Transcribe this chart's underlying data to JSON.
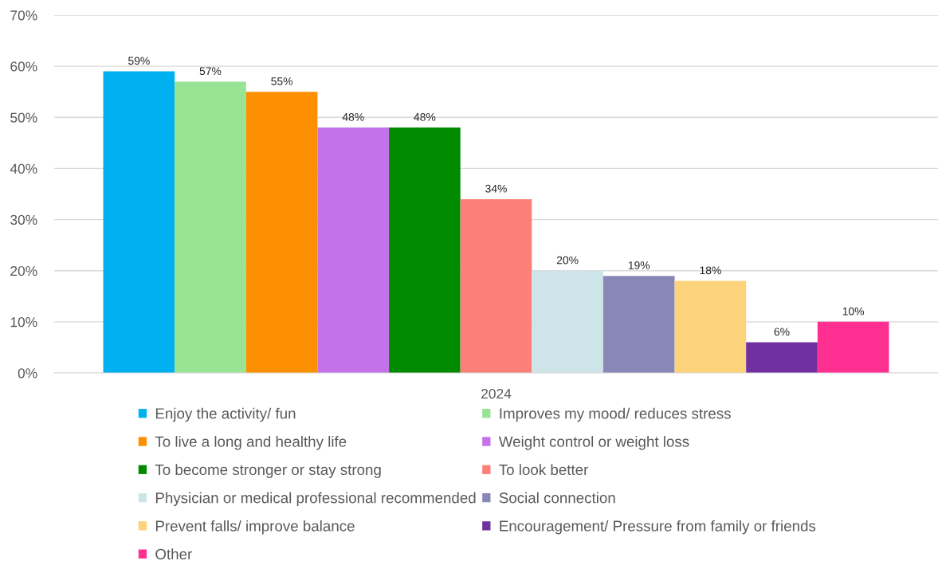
{
  "chart_data": {
    "type": "bar",
    "categories": [
      "2024"
    ],
    "series": [
      {
        "name": "Enjoy the activity/ fun",
        "color": "#00b0f0",
        "values": [
          59
        ],
        "value_labels": [
          "59%"
        ]
      },
      {
        "name": "Improves my mood/ reduces stress",
        "color": "#99e395",
        "values": [
          57
        ],
        "value_labels": [
          "57%"
        ]
      },
      {
        "name": "To live a long and healthy life",
        "color": "#fd9000",
        "values": [
          55
        ],
        "value_labels": [
          "55%"
        ]
      },
      {
        "name": "Weight control or weight loss",
        "color": "#c373e7",
        "values": [
          48
        ],
        "value_labels": [
          "48%"
        ]
      },
      {
        "name": "To become stronger or stay strong",
        "color": "#008a00",
        "values": [
          48
        ],
        "value_labels": [
          "48%"
        ]
      },
      {
        "name": "To look better",
        "color": "#fe7f78",
        "values": [
          34
        ],
        "value_labels": [
          "34%"
        ]
      },
      {
        "name": "Physician or medical professional recommended",
        "color": "#cde5e8",
        "values": [
          20
        ],
        "value_labels": [
          "20%"
        ]
      },
      {
        "name": "Social connection",
        "color": "#8888b8",
        "values": [
          19
        ],
        "value_labels": [
          "19%"
        ]
      },
      {
        "name": "Prevent falls/ improve balance",
        "color": "#fcd27a",
        "values": [
          18
        ],
        "value_labels": [
          "18%"
        ]
      },
      {
        "name": "Encouragement/ Pressure from family or friends",
        "color": "#7030a0",
        "values": [
          6
        ],
        "value_labels": [
          "6%"
        ]
      },
      {
        "name": "Other",
        "color": "#ff2f92",
        "values": [
          10
        ],
        "value_labels": [
          "10%"
        ]
      }
    ],
    "ylim": [
      0,
      70
    ],
    "yticks": [
      {
        "value": 0,
        "label": "0%"
      },
      {
        "value": 10,
        "label": "10%"
      },
      {
        "value": 20,
        "label": "20%"
      },
      {
        "value": 30,
        "label": "30%"
      },
      {
        "value": 40,
        "label": "40%"
      },
      {
        "value": 50,
        "label": "50%"
      },
      {
        "value": 60,
        "label": "60%"
      },
      {
        "value": 70,
        "label": "70%"
      }
    ],
    "grid": "y",
    "legend": "bottom"
  }
}
